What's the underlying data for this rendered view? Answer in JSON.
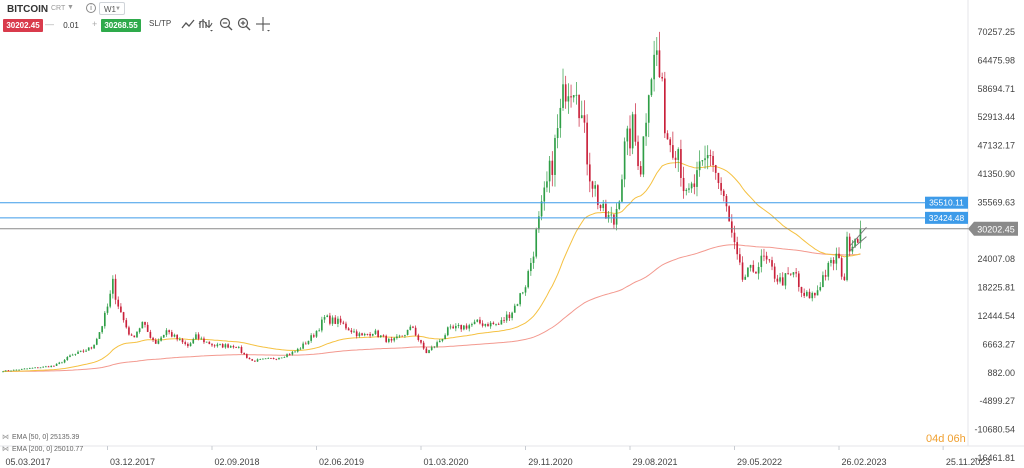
{
  "header": {
    "symbol": "BITCOIN",
    "mode": "CRT",
    "timeframe": "W1",
    "sell_price": "30202.45",
    "buy_price": "30268.55",
    "quantity": "0.01",
    "minus": "—",
    "plus": "+",
    "sltp": "SL/TP",
    "info": "i"
  },
  "tools": [
    "line-chart-icon",
    "indicators-icon",
    "zoom-out-icon",
    "zoom-in-icon",
    "crosshair-icon"
  ],
  "legend": [
    {
      "label": "EMA [50, 0] 25135.39",
      "color": "#f3c040"
    },
    {
      "label": "EMA [200, 0] 25010.77",
      "color": "#f08a80"
    }
  ],
  "countdown": "04d 06h",
  "colors": {
    "up": "#2e9e46",
    "down": "#c9203a",
    "ema50": "#f5c141",
    "ema200": "#f3998f",
    "level": "#3d9be9",
    "price": "#8a8a8a"
  },
  "chart_data": {
    "type": "candlestick",
    "y_ticks": [
      70257.25,
      64475.98,
      58694.71,
      52913.44,
      47132.17,
      41350.9,
      35569.63,
      24007.08,
      18225.81,
      12444.54,
      6663.27,
      882.0,
      -4899.27,
      -10680.54,
      -16461.81
    ],
    "y_tick_labels": [
      "70257.25",
      "64475.98",
      "58694.71",
      "52913.44",
      "47132.17",
      "41350.90",
      "35569.63",
      "24007.08",
      "18225.81",
      "12444.54",
      "6663.27",
      "882.00",
      "-4899.27",
      "-10680.54",
      "-16461.81"
    ],
    "x_ticks": [
      "2017-03-05",
      "2017-12-03",
      "2018-09-02",
      "2019-06-02",
      "2020-03-01",
      "2020-11-29",
      "2021-08-29",
      "2022-05-29",
      "2023-02-26",
      "2023-11-25"
    ],
    "x_tick_labels": [
      "05.03.2017",
      "03.12.2017",
      "02.09.2018",
      "02.06.2019",
      "01.03.2020",
      "29.11.2020",
      "29.08.2021",
      "29.05.2022",
      "26.02.2023",
      "25.11.2023"
    ],
    "levels": [
      {
        "value": 35510.11,
        "label": "35510.11"
      },
      {
        "value": 32424.48,
        "label": "32424.48"
      }
    ],
    "current_price": {
      "value": 30202.45,
      "label": "30202.45"
    },
    "price_anchors": [
      [
        "2017-03-05",
        1250
      ],
      [
        "2017-05-14",
        1800
      ],
      [
        "2017-07-16",
        2300
      ],
      [
        "2017-08-27",
        4300
      ],
      [
        "2017-10-22",
        6000
      ],
      [
        "2017-12-17",
        19000
      ],
      [
        "2018-02-04",
        8000
      ],
      [
        "2018-03-04",
        11000
      ],
      [
        "2018-04-08",
        7000
      ],
      [
        "2018-05-06",
        9500
      ],
      [
        "2018-07-01",
        6300
      ],
      [
        "2018-07-22",
        8200
      ],
      [
        "2018-09-09",
        6400
      ],
      [
        "2018-11-04",
        6400
      ],
      [
        "2018-12-16",
        3300
      ],
      [
        "2019-02-17",
        3900
      ],
      [
        "2019-04-07",
        5200
      ],
      [
        "2019-05-26",
        8700
      ],
      [
        "2019-06-23",
        12000
      ],
      [
        "2019-08-04",
        11000
      ],
      [
        "2019-09-29",
        8300
      ],
      [
        "2019-10-27",
        9300
      ],
      [
        "2019-12-15",
        7100
      ],
      [
        "2020-02-09",
        10200
      ],
      [
        "2020-03-15",
        5000
      ],
      [
        "2020-05-10",
        9500
      ],
      [
        "2020-07-26",
        11000
      ],
      [
        "2020-09-20",
        10700
      ],
      [
        "2020-10-25",
        13500
      ],
      [
        "2020-11-29",
        19000
      ],
      [
        "2020-12-27",
        29000
      ],
      [
        "2021-01-17",
        36500
      ],
      [
        "2021-02-21",
        50000
      ],
      [
        "2021-03-14",
        60000
      ],
      [
        "2021-04-11",
        61000
      ],
      [
        "2021-05-16",
        42000
      ],
      [
        "2021-06-20",
        33000
      ],
      [
        "2021-07-18",
        31500
      ],
      [
        "2021-08-15",
        46000
      ],
      [
        "2021-09-05",
        50500
      ],
      [
        "2021-09-26",
        43000
      ],
      [
        "2021-10-17",
        61000
      ],
      [
        "2021-11-07",
        66000
      ],
      [
        "2021-12-05",
        49000
      ],
      [
        "2022-01-02",
        47000
      ],
      [
        "2022-01-23",
        36000
      ],
      [
        "2022-03-27",
        46000
      ],
      [
        "2022-05-08",
        34000
      ],
      [
        "2022-06-19",
        20000
      ],
      [
        "2022-08-14",
        24000
      ],
      [
        "2022-09-25",
        19500
      ],
      [
        "2022-11-06",
        21000
      ],
      [
        "2022-11-20",
        16300
      ],
      [
        "2022-12-25",
        16800
      ],
      [
        "2023-01-15",
        20500
      ],
      [
        "2023-02-19",
        24500
      ],
      [
        "2023-03-12",
        20300
      ],
      [
        "2023-03-19",
        27000
      ],
      [
        "2023-04-09",
        28500
      ],
      [
        "2023-04-23",
        30202
      ]
    ]
  }
}
